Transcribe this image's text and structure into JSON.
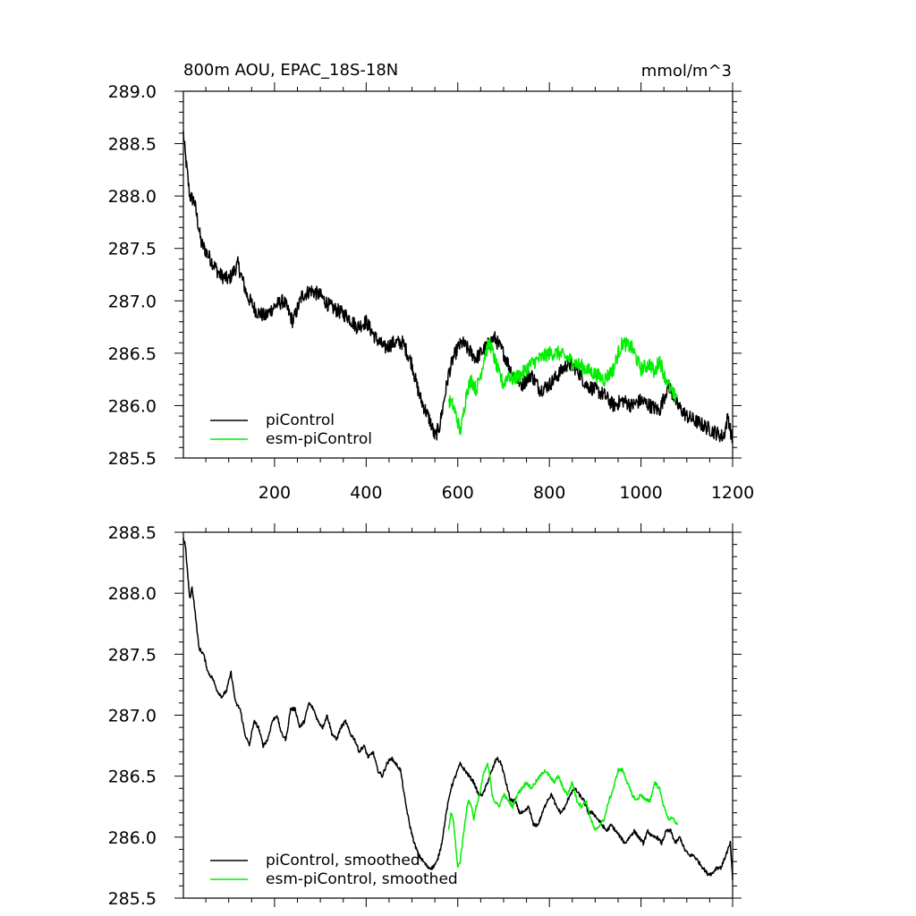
{
  "chart_data": [
    {
      "type": "line",
      "title": "800m AOU, EPAC_18S-18N",
      "units": "mmol/m^3",
      "xlim": [
        1,
        1200
      ],
      "ylim": [
        285.5,
        289.0
      ],
      "xticks": [
        200,
        400,
        600,
        800,
        1000,
        1200
      ],
      "xtick_labels": [
        "200",
        "400",
        "600",
        "800",
        "1000",
        "1200"
      ],
      "yticks": [
        285.5,
        286.0,
        286.5,
        287.0,
        287.5,
        288.0,
        288.5,
        289.0
      ],
      "ytick_labels": [
        "285.5",
        "286.0",
        "286.5",
        "287.0",
        "287.5",
        "288.0",
        "288.5",
        "289.0"
      ],
      "legend_position": "bottom-left",
      "series": [
        {
          "name": "piControl",
          "color": "#000000",
          "noise": 0.07,
          "x": [
            1,
            5,
            15,
            25,
            40,
            60,
            80,
            100,
            120,
            140,
            160,
            180,
            200,
            220,
            240,
            260,
            280,
            300,
            320,
            340,
            360,
            380,
            400,
            420,
            440,
            460,
            480,
            500,
            510,
            520,
            530,
            540,
            550,
            560,
            570,
            580,
            590,
            600,
            610,
            620,
            640,
            660,
            680,
            700,
            720,
            740,
            760,
            780,
            800,
            820,
            840,
            860,
            880,
            900,
            920,
            940,
            960,
            980,
            1000,
            1020,
            1040,
            1060,
            1080,
            1100,
            1120,
            1140,
            1160,
            1180,
            1190,
            1200
          ],
          "y": [
            288.6,
            288.4,
            288.0,
            287.95,
            287.55,
            287.4,
            287.25,
            287.2,
            287.35,
            287.05,
            286.9,
            286.85,
            286.95,
            287.0,
            286.8,
            287.05,
            287.1,
            287.05,
            286.95,
            286.9,
            286.85,
            286.75,
            286.8,
            286.65,
            286.55,
            286.6,
            286.6,
            286.4,
            286.2,
            286.05,
            285.95,
            285.85,
            285.7,
            285.8,
            286.05,
            286.3,
            286.45,
            286.55,
            286.6,
            286.55,
            286.45,
            286.55,
            286.65,
            286.5,
            286.3,
            286.2,
            286.3,
            286.15,
            286.2,
            286.3,
            286.4,
            286.35,
            286.2,
            286.15,
            286.1,
            286.0,
            286.05,
            286.0,
            286.05,
            286.0,
            285.95,
            286.2,
            286.0,
            285.9,
            285.85,
            285.8,
            285.75,
            285.7,
            285.9,
            285.65
          ]
        },
        {
          "name": "esm-piControl",
          "color": "#00ee00",
          "noise": 0.07,
          "x": [
            580,
            590,
            600,
            605,
            610,
            620,
            630,
            640,
            650,
            660,
            670,
            680,
            690,
            700,
            710,
            720,
            740,
            760,
            780,
            800,
            820,
            840,
            860,
            880,
            900,
            920,
            940,
            950,
            960,
            980,
            1000,
            1020,
            1030,
            1040,
            1050,
            1060,
            1070,
            1080
          ],
          "y": [
            286.05,
            286.0,
            285.85,
            285.75,
            285.85,
            286.15,
            286.25,
            286.15,
            286.3,
            286.5,
            286.6,
            286.45,
            286.3,
            286.2,
            286.3,
            286.25,
            286.3,
            286.4,
            286.45,
            286.5,
            286.5,
            286.45,
            286.4,
            286.35,
            286.3,
            286.25,
            286.35,
            286.5,
            286.6,
            286.55,
            286.35,
            286.4,
            286.3,
            286.45,
            286.3,
            286.2,
            286.1,
            286.1
          ]
        }
      ]
    },
    {
      "type": "line",
      "title": "",
      "xlim": [
        1,
        1200
      ],
      "ylim": [
        285.5,
        288.5
      ],
      "xticks": [
        200,
        400,
        600,
        800,
        1000,
        1200
      ],
      "xtick_labels": [],
      "yticks": [
        285.5,
        286.0,
        286.5,
        287.0,
        287.5,
        288.0,
        288.5
      ],
      "ytick_labels": [
        "285.5",
        "286.0",
        "286.5",
        "287.0",
        "287.5",
        "288.0",
        "288.5"
      ],
      "legend_position": "bottom-left",
      "series": [
        {
          "name": "piControl, smoothed",
          "color": "#000000",
          "noise": 0.015,
          "x": [
            1,
            5,
            15,
            20,
            25,
            35,
            45,
            55,
            65,
            75,
            85,
            95,
            105,
            115,
            125,
            135,
            145,
            155,
            165,
            175,
            185,
            195,
            205,
            215,
            225,
            235,
            245,
            255,
            265,
            275,
            285,
            295,
            305,
            315,
            325,
            335,
            345,
            355,
            365,
            375,
            385,
            395,
            405,
            415,
            425,
            435,
            445,
            455,
            465,
            475,
            485,
            495,
            505,
            515,
            525,
            535,
            545,
            555,
            565,
            575,
            585,
            595,
            605,
            615,
            625,
            635,
            645,
            655,
            665,
            675,
            685,
            695,
            705,
            715,
            725,
            735,
            745,
            755,
            765,
            775,
            785,
            795,
            805,
            815,
            825,
            835,
            845,
            855,
            865,
            875,
            885,
            895,
            905,
            915,
            925,
            935,
            945,
            955,
            965,
            975,
            985,
            995,
            1005,
            1015,
            1025,
            1035,
            1045,
            1055,
            1065,
            1075,
            1085,
            1095,
            1105,
            1115,
            1125,
            1135,
            1145,
            1155,
            1165,
            1175,
            1185,
            1195,
            1200
          ],
          "y": [
            288.45,
            288.4,
            287.95,
            288.05,
            287.9,
            287.55,
            287.5,
            287.35,
            287.3,
            287.2,
            287.15,
            287.2,
            287.35,
            287.1,
            287.05,
            286.85,
            286.75,
            286.95,
            286.9,
            286.75,
            286.8,
            286.95,
            287.0,
            286.85,
            286.8,
            287.05,
            287.05,
            286.9,
            286.95,
            287.1,
            287.05,
            286.95,
            286.9,
            287.0,
            286.85,
            286.8,
            286.9,
            286.95,
            286.85,
            286.8,
            286.7,
            286.75,
            286.65,
            286.7,
            286.55,
            286.5,
            286.6,
            286.65,
            286.6,
            286.55,
            286.3,
            286.1,
            285.95,
            285.85,
            285.8,
            285.75,
            285.75,
            285.8,
            285.95,
            286.2,
            286.4,
            286.5,
            286.6,
            286.55,
            286.5,
            286.45,
            286.35,
            286.35,
            286.45,
            286.55,
            286.65,
            286.6,
            286.45,
            286.3,
            286.3,
            286.2,
            286.2,
            286.25,
            286.1,
            286.1,
            286.2,
            286.3,
            286.35,
            286.25,
            286.2,
            286.25,
            286.35,
            286.4,
            286.35,
            286.3,
            286.2,
            286.2,
            286.15,
            286.1,
            286.05,
            286.1,
            286.05,
            286.0,
            285.95,
            286.0,
            286.05,
            286.0,
            285.95,
            286.05,
            286.0,
            286.0,
            285.95,
            286.05,
            286.05,
            285.95,
            286.0,
            285.9,
            285.85,
            285.85,
            285.8,
            285.75,
            285.7,
            285.7,
            285.75,
            285.75,
            285.85,
            285.95,
            285.65
          ]
        },
        {
          "name": "esm-piControl, smoothed",
          "color": "#00ee00",
          "noise": 0.015,
          "x": [
            580,
            585,
            590,
            595,
            600,
            605,
            610,
            615,
            620,
            625,
            630,
            635,
            640,
            645,
            650,
            655,
            660,
            665,
            670,
            675,
            680,
            690,
            700,
            710,
            720,
            730,
            740,
            750,
            760,
            770,
            780,
            790,
            800,
            810,
            820,
            830,
            840,
            850,
            860,
            870,
            880,
            890,
            900,
            910,
            920,
            930,
            940,
            950,
            960,
            970,
            980,
            990,
            1000,
            1010,
            1020,
            1030,
            1040,
            1050,
            1060,
            1070,
            1080
          ],
          "y": [
            286.05,
            286.2,
            286.15,
            285.95,
            285.75,
            285.8,
            285.95,
            286.1,
            286.25,
            286.3,
            286.25,
            286.15,
            286.25,
            286.3,
            286.4,
            286.5,
            286.55,
            286.6,
            286.5,
            286.35,
            286.3,
            286.25,
            286.35,
            286.3,
            286.25,
            286.35,
            286.4,
            286.45,
            286.4,
            286.45,
            286.5,
            286.55,
            286.5,
            286.45,
            286.5,
            286.4,
            286.35,
            286.45,
            286.3,
            286.25,
            286.3,
            286.15,
            286.05,
            286.1,
            286.15,
            286.3,
            286.4,
            286.55,
            286.55,
            286.45,
            286.35,
            286.3,
            286.35,
            286.3,
            286.3,
            286.45,
            286.4,
            286.25,
            286.15,
            286.15,
            286.1
          ]
        }
      ]
    }
  ]
}
